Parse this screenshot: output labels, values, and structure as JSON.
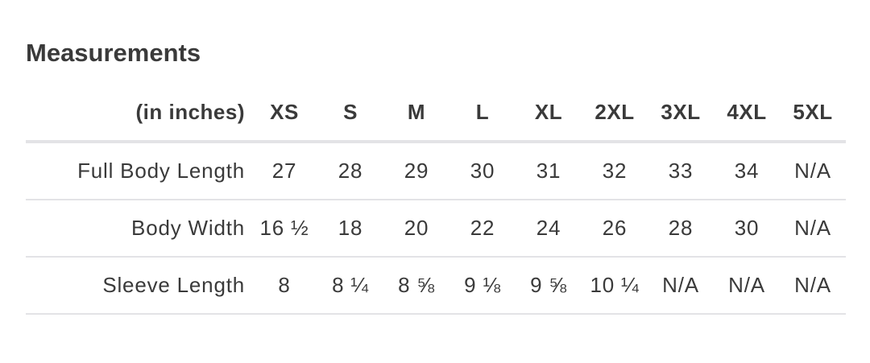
{
  "title": "Measurements",
  "table": {
    "unit_header": "(in inches)",
    "sizes": [
      "XS",
      "S",
      "M",
      "L",
      "XL",
      "2XL",
      "3XL",
      "4XL",
      "5XL"
    ],
    "rows": [
      {
        "label": "Full Body Length",
        "values": [
          "27",
          "28",
          "29",
          "30",
          "31",
          "32",
          "33",
          "34",
          "N/A"
        ]
      },
      {
        "label": "Body Width",
        "values": [
          "16 ½",
          "18",
          "20",
          "22",
          "24",
          "26",
          "28",
          "30",
          "N/A"
        ]
      },
      {
        "label": "Sleeve Length",
        "values": [
          "8",
          "8 ¼",
          "8 ⅝",
          "9 ⅛",
          "9 ⅝",
          "10 ¼",
          "N/A",
          "N/A",
          "N/A"
        ]
      }
    ]
  }
}
